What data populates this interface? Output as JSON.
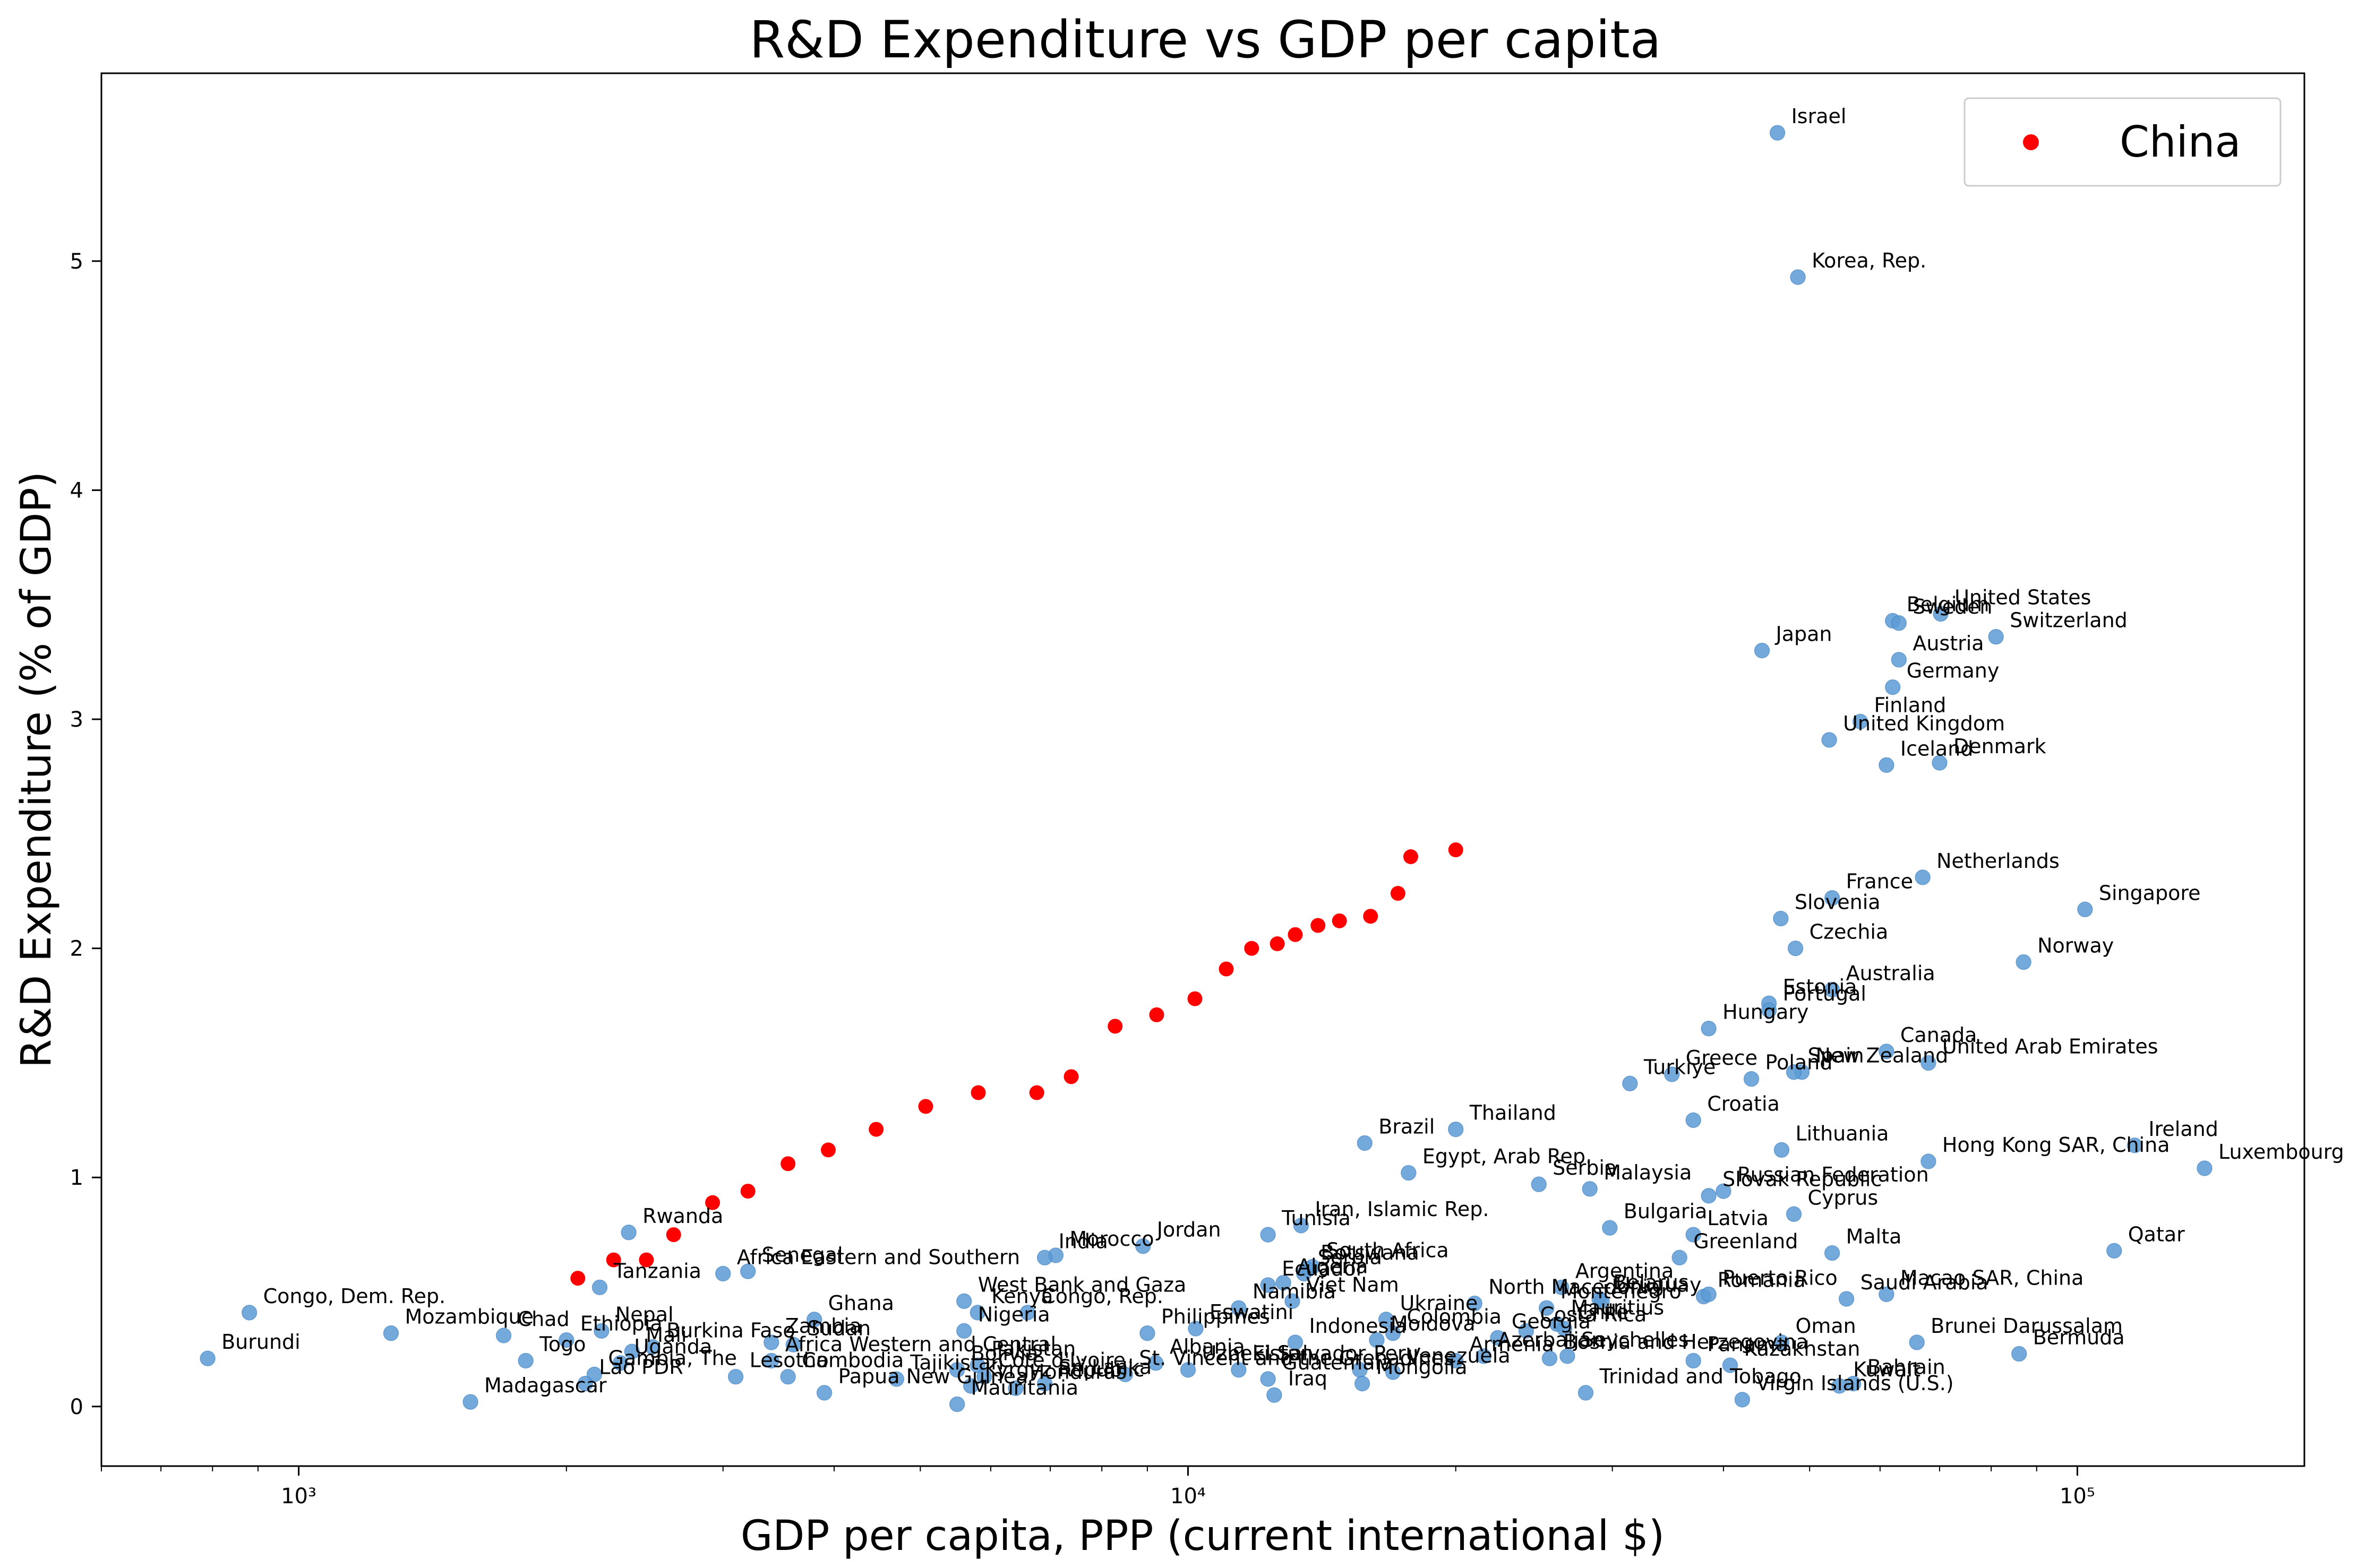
{
  "chart_data": {
    "type": "scatter",
    "title": "R&D Expenditure vs GDP per capita",
    "xlabel": "GDP per capita, PPP (current international $)",
    "ylabel": "R&D Expenditure (% of GDP)",
    "x_scale": "log",
    "xlim": [
      600,
      180000
    ],
    "ylim": [
      -0.26,
      5.82
    ],
    "x_ticks": [
      {
        "value": 1000,
        "label": "10³"
      },
      {
        "value": 10000,
        "label": "10⁴"
      },
      {
        "value": 100000,
        "label": "10⁵"
      }
    ],
    "y_ticks": [
      0,
      1,
      2,
      3,
      4,
      5
    ],
    "grid": false,
    "legend": {
      "position": "top-right",
      "entries": [
        "China"
      ]
    },
    "colors": {
      "countries": "#5b9bd5",
      "china": "#ff0000"
    },
    "series": [
      {
        "name": "China",
        "points": [
          {
            "x": 2060,
            "y": 0.56
          },
          {
            "x": 2260,
            "y": 0.64
          },
          {
            "x": 2460,
            "y": 0.64
          },
          {
            "x": 2640,
            "y": 0.75
          },
          {
            "x": 2920,
            "y": 0.89
          },
          {
            "x": 3200,
            "y": 0.94
          },
          {
            "x": 3550,
            "y": 1.06
          },
          {
            "x": 3940,
            "y": 1.12
          },
          {
            "x": 4460,
            "y": 1.21
          },
          {
            "x": 5070,
            "y": 1.31
          },
          {
            "x": 5810,
            "y": 1.37
          },
          {
            "x": 6760,
            "y": 1.37
          },
          {
            "x": 7390,
            "y": 1.44
          },
          {
            "x": 8280,
            "y": 1.66
          },
          {
            "x": 9220,
            "y": 1.71
          },
          {
            "x": 10180,
            "y": 1.78
          },
          {
            "x": 11040,
            "y": 1.91
          },
          {
            "x": 11790,
            "y": 2.0
          },
          {
            "x": 12600,
            "y": 2.02
          },
          {
            "x": 13200,
            "y": 2.06
          },
          {
            "x": 14000,
            "y": 2.1
          },
          {
            "x": 14800,
            "y": 2.12
          },
          {
            "x": 16040,
            "y": 2.14
          },
          {
            "x": 17220,
            "y": 2.24
          },
          {
            "x": 17800,
            "y": 2.4
          },
          {
            "x": 20000,
            "y": 2.43
          }
        ]
      },
      {
        "name": "",
        "points": [
          {
            "label": "Israel",
            "x": 46000,
            "y": 5.56
          },
          {
            "label": "Korea, Rep.",
            "x": 48500,
            "y": 4.93
          },
          {
            "label": "United States",
            "x": 70200,
            "y": 3.46
          },
          {
            "label": "Belgium",
            "x": 62000,
            "y": 3.43
          },
          {
            "label": "Sweden",
            "x": 63000,
            "y": 3.42
          },
          {
            "label": "Switzerland",
            "x": 81000,
            "y": 3.36
          },
          {
            "label": "Japan",
            "x": 44200,
            "y": 3.3
          },
          {
            "label": "Austria",
            "x": 63000,
            "y": 3.26
          },
          {
            "label": "Germany",
            "x": 62000,
            "y": 3.14
          },
          {
            "label": "Finland",
            "x": 57000,
            "y": 2.99
          },
          {
            "label": "United Kingdom",
            "x": 52600,
            "y": 2.91
          },
          {
            "label": "Iceland",
            "x": 61000,
            "y": 2.8
          },
          {
            "label": "Denmark",
            "x": 70000,
            "y": 2.81
          },
          {
            "label": "Netherlands",
            "x": 67000,
            "y": 2.31
          },
          {
            "label": "France",
            "x": 53000,
            "y": 2.22
          },
          {
            "label": "Singapore",
            "x": 102000,
            "y": 2.17
          },
          {
            "label": "Slovenia",
            "x": 46400,
            "y": 2.13
          },
          {
            "label": "Czechia",
            "x": 48200,
            "y": 2.0
          },
          {
            "label": "Norway",
            "x": 87000,
            "y": 1.94
          },
          {
            "label": "Australia",
            "x": 53000,
            "y": 1.82
          },
          {
            "label": "Estonia",
            "x": 45000,
            "y": 1.76
          },
          {
            "label": "Portugal",
            "x": 45000,
            "y": 1.73
          },
          {
            "label": "Hungary",
            "x": 38500,
            "y": 1.65
          },
          {
            "label": "Canada",
            "x": 61000,
            "y": 1.55
          },
          {
            "label": "United Arab Emirates",
            "x": 68000,
            "y": 1.5
          },
          {
            "label": "Greece",
            "x": 35000,
            "y": 1.45
          },
          {
            "label": "New Zealand",
            "x": 49000,
            "y": 1.46
          },
          {
            "label": "Spain",
            "x": 48000,
            "y": 1.46
          },
          {
            "label": "Poland",
            "x": 43000,
            "y": 1.43
          },
          {
            "label": "Turkiye",
            "x": 31400,
            "y": 1.41
          },
          {
            "label": "Thailand",
            "x": 20000,
            "y": 1.21
          },
          {
            "label": "Croatia",
            "x": 37000,
            "y": 1.25
          },
          {
            "label": "Brazil",
            "x": 15800,
            "y": 1.15
          },
          {
            "label": "Lithuania",
            "x": 46500,
            "y": 1.12
          },
          {
            "label": "Ireland",
            "x": 116000,
            "y": 1.14
          },
          {
            "label": "Hong Kong SAR, China",
            "x": 68000,
            "y": 1.07
          },
          {
            "label": "Luxembourg",
            "x": 139000,
            "y": 1.04
          },
          {
            "label": "Egypt, Arab Rep.",
            "x": 17700,
            "y": 1.02
          },
          {
            "label": "Serbia",
            "x": 24800,
            "y": 0.97
          },
          {
            "label": "Malaysia",
            "x": 28300,
            "y": 0.95
          },
          {
            "label": "Russian Federation",
            "x": 40000,
            "y": 0.94
          },
          {
            "label": "Slovak Republic",
            "x": 38500,
            "y": 0.92
          },
          {
            "label": "Cyprus",
            "x": 48000,
            "y": 0.84
          },
          {
            "label": "Iran, Islamic Rep.",
            "x": 13400,
            "y": 0.79
          },
          {
            "label": "Bulgaria",
            "x": 29800,
            "y": 0.78
          },
          {
            "label": "Latvia",
            "x": 37000,
            "y": 0.75
          },
          {
            "label": "Tunisia",
            "x": 12300,
            "y": 0.75
          },
          {
            "label": "Rwanda",
            "x": 2350,
            "y": 0.76
          },
          {
            "label": "Jordan",
            "x": 8900,
            "y": 0.7
          },
          {
            "label": "Malta",
            "x": 53000,
            "y": 0.67
          },
          {
            "label": "Qatar",
            "x": 110000,
            "y": 0.68
          },
          {
            "label": "Morocco",
            "x": 7100,
            "y": 0.66
          },
          {
            "label": "India",
            "x": 6900,
            "y": 0.65
          },
          {
            "label": "Greenland",
            "x": 35700,
            "y": 0.65
          },
          {
            "label": "South Africa",
            "x": 13800,
            "y": 0.61
          },
          {
            "label": "Botswana",
            "x": 13600,
            "y": 0.6
          },
          {
            "label": "Serbia",
            "x": 13500,
            "y": 0.58
          },
          {
            "label": "Senegal",
            "x": 3200,
            "y": 0.59
          },
          {
            "label": "Africa Eastern and Southern",
            "x": 3000,
            "y": 0.58
          },
          {
            "label": "Algeria",
            "x": 12800,
            "y": 0.54
          },
          {
            "label": "Ecuador",
            "x": 12300,
            "y": 0.53
          },
          {
            "label": "Tanzania",
            "x": 2180,
            "y": 0.52
          },
          {
            "label": "Argentina",
            "x": 26300,
            "y": 0.52
          },
          {
            "label": "Viet Nam",
            "x": 13100,
            "y": 0.46
          },
          {
            "label": "Macao SAR, China",
            "x": 61000,
            "y": 0.49
          },
          {
            "label": "Saudi Arabia",
            "x": 55000,
            "y": 0.47
          },
          {
            "label": "Romania",
            "x": 38000,
            "y": 0.48
          },
          {
            "label": "Puerto Rico",
            "x": 38500,
            "y": 0.49
          },
          {
            "label": "Belarus",
            "x": 29000,
            "y": 0.47
          },
          {
            "label": "Uruguay",
            "x": 29200,
            "y": 0.46
          },
          {
            "label": "North Macedonia",
            "x": 21000,
            "y": 0.45
          },
          {
            "label": "Montenegro",
            "x": 25300,
            "y": 0.43
          },
          {
            "label": "Kenya",
            "x": 5800,
            "y": 0.41
          },
          {
            "label": "Congo, Rep.",
            "x": 6600,
            "y": 0.41
          },
          {
            "label": "Congo, Dem. Rep.",
            "x": 880,
            "y": 0.41
          },
          {
            "label": "Namibia",
            "x": 11400,
            "y": 0.43
          },
          {
            "label": "Ghana",
            "x": 3800,
            "y": 0.38
          },
          {
            "label": "West Bank and Gaza",
            "x": 5600,
            "y": 0.46
          },
          {
            "label": "Ukraine",
            "x": 16700,
            "y": 0.38
          },
          {
            "label": "Nepal",
            "x": 2190,
            "y": 0.33
          },
          {
            "label": "Nigeria",
            "x": 5600,
            "y": 0.33
          },
          {
            "label": "Mauritius",
            "x": 26000,
            "y": 0.36
          },
          {
            "label": "Philippines",
            "x": 9000,
            "y": 0.32
          },
          {
            "label": "Colombia",
            "x": 17000,
            "y": 0.32
          },
          {
            "label": "Chile",
            "x": 26500,
            "y": 0.34
          },
          {
            "label": "Costa Rica",
            "x": 24000,
            "y": 0.33
          },
          {
            "label": "Eswatini",
            "x": 10200,
            "y": 0.34
          },
          {
            "label": "Indonesia",
            "x": 13200,
            "y": 0.28
          },
          {
            "label": "Mozambique",
            "x": 1270,
            "y": 0.32
          },
          {
            "label": "Chad",
            "x": 1700,
            "y": 0.31
          },
          {
            "label": "Ethiopia",
            "x": 2000,
            "y": 0.29
          },
          {
            "label": "Burkina Faso",
            "x": 2500,
            "y": 0.26
          },
          {
            "label": "Zambia",
            "x": 3400,
            "y": 0.28
          },
          {
            "label": "Sudan",
            "x": 3600,
            "y": 0.27
          },
          {
            "label": "Moldova",
            "x": 16300,
            "y": 0.29
          },
          {
            "label": "Georgia",
            "x": 22300,
            "y": 0.3
          },
          {
            "label": "Oman",
            "x": 46500,
            "y": 0.28
          },
          {
            "label": "Brunei Darussalam",
            "x": 66000,
            "y": 0.28
          },
          {
            "label": "Bermuda",
            "x": 86000,
            "y": 0.23
          },
          {
            "label": "Mali",
            "x": 2370,
            "y": 0.24
          },
          {
            "label": "Togo",
            "x": 1800,
            "y": 0.2
          },
          {
            "label": "Uganda",
            "x": 2300,
            "y": 0.19
          },
          {
            "label": "Bolivia",
            "x": 5500,
            "y": 0.16
          },
          {
            "label": "Pakistan",
            "x": 5800,
            "y": 0.18
          },
          {
            "label": "Armenia",
            "x": 20000,
            "y": 0.2
          },
          {
            "label": "Seychelles",
            "x": 26700,
            "y": 0.22
          },
          {
            "label": "Azerbaijan",
            "x": 21500,
            "y": 0.22
          },
          {
            "label": "Panama",
            "x": 37000,
            "y": 0.2
          },
          {
            "label": "Bosnia and Herzegovina",
            "x": 25500,
            "y": 0.21
          },
          {
            "label": "Albania",
            "x": 9200,
            "y": 0.19
          },
          {
            "label": "Uzbekistan",
            "x": 10000,
            "y": 0.16
          },
          {
            "label": "El Salvador",
            "x": 11400,
            "y": 0.16
          },
          {
            "label": "Peru",
            "x": 15600,
            "y": 0.16
          },
          {
            "label": "Venezuela",
            "x": 17000,
            "y": 0.15
          },
          {
            "label": "Kazakhstan",
            "x": 40700,
            "y": 0.18
          },
          {
            "label": "Africa Western and Central",
            "x": 3400,
            "y": 0.2
          },
          {
            "label": "Cambodia",
            "x": 3550,
            "y": 0.13
          },
          {
            "label": "Lesotho",
            "x": 3100,
            "y": 0.13
          },
          {
            "label": "Gambia, The",
            "x": 2150,
            "y": 0.14
          },
          {
            "label": "Lao PDR",
            "x": 2100,
            "y": 0.1
          },
          {
            "label": "Tajikistan",
            "x": 4700,
            "y": 0.12
          },
          {
            "label": "Papua New Guinea",
            "x": 3900,
            "y": 0.06
          },
          {
            "label": "Cote d'Ivoire",
            "x": 5900,
            "y": 0.13
          },
          {
            "label": "Kyrgyz Republic",
            "x": 5700,
            "y": 0.09
          },
          {
            "label": "Sri Lanka",
            "x": 6900,
            "y": 0.1
          },
          {
            "label": "Honduras",
            "x": 6400,
            "y": 0.08
          },
          {
            "label": "Guatemala",
            "x": 12300,
            "y": 0.12
          },
          {
            "label": "Mongolia",
            "x": 15700,
            "y": 0.1
          },
          {
            "label": "St. Vincent and the Grenadines",
            "x": 8500,
            "y": 0.14
          },
          {
            "label": "Trinidad and Tobago",
            "x": 28000,
            "y": 0.06
          },
          {
            "label": "Bahrain",
            "x": 56000,
            "y": 0.1
          },
          {
            "label": "Kuwait",
            "x": 54000,
            "y": 0.09
          },
          {
            "label": "Virgin Islands (U.S.)",
            "x": 42000,
            "y": 0.03
          },
          {
            "label": "Iraq",
            "x": 12500,
            "y": 0.05
          },
          {
            "label": "Madagascar",
            "x": 1560,
            "y": 0.02
          },
          {
            "label": "Burundi",
            "x": 790,
            "y": 0.21
          },
          {
            "label": "Mauritania",
            "x": 5500,
            "y": 0.01
          }
        ]
      }
    ]
  }
}
